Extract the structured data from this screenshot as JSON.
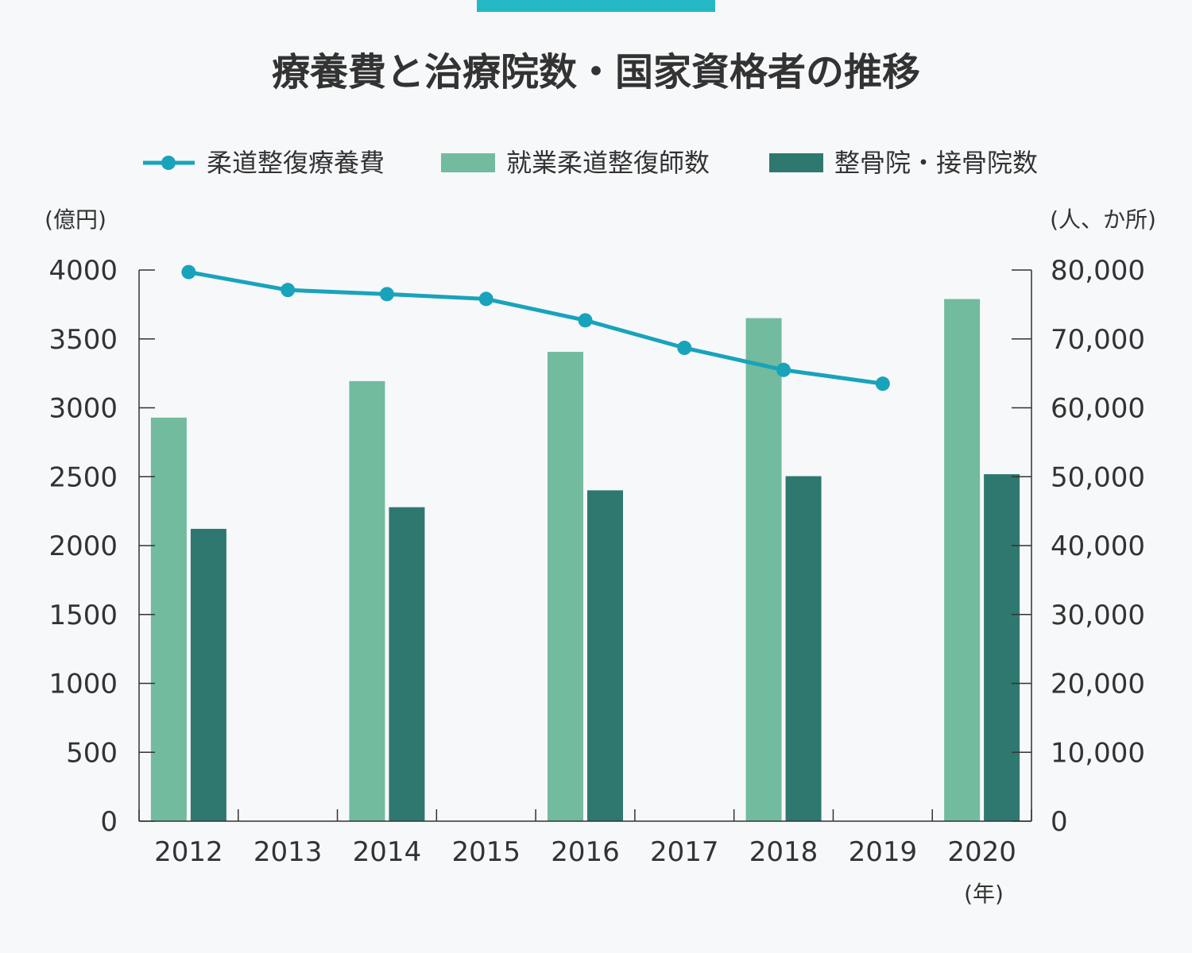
{
  "colors": {
    "top_bar": "#24b8c4",
    "line": "#19a3bb",
    "bar_practitioners": "#72bb9e",
    "bar_clinics": "#2f7870",
    "axis": "#333333"
  },
  "chart_data": {
    "type": "bar",
    "title": "療養費と治療院数・国家資格者の推移",
    "legend_position": "top",
    "grid": false,
    "x_unit": "(年)",
    "y_left_unit": "(億円)",
    "y_right_unit": "(人、か所)",
    "categories": [
      "2012",
      "2013",
      "2014",
      "2015",
      "2016",
      "2017",
      "2018",
      "2019",
      "2020"
    ],
    "y_left": {
      "min": 0,
      "max": 4000,
      "ticks": [
        "0",
        "500",
        "1000",
        "1500",
        "2000",
        "2500",
        "3000",
        "3500",
        "4000"
      ]
    },
    "y_right": {
      "min": 0,
      "max": 80000,
      "ticks": [
        "0",
        "10,000",
        "20,000",
        "30,000",
        "40,000",
        "50,000",
        "60,000",
        "70,000",
        "80,000"
      ]
    },
    "series": [
      {
        "name": "柔道整復療養費",
        "type": "line",
        "axis": "left",
        "values": [
          3985,
          3855,
          3825,
          3790,
          3635,
          3435,
          3275,
          3175,
          null
        ]
      },
      {
        "name": "就業柔道整復師数",
        "type": "bar",
        "axis": "right",
        "values": [
          58573,
          null,
          63873,
          null,
          68120,
          null,
          73017,
          null,
          75786
        ]
      },
      {
        "name": "整骨院・接骨院数",
        "type": "bar",
        "axis": "right",
        "values": [
          42431,
          null,
          45572,
          null,
          48024,
          null,
          50077,
          null,
          50364
        ]
      }
    ]
  }
}
